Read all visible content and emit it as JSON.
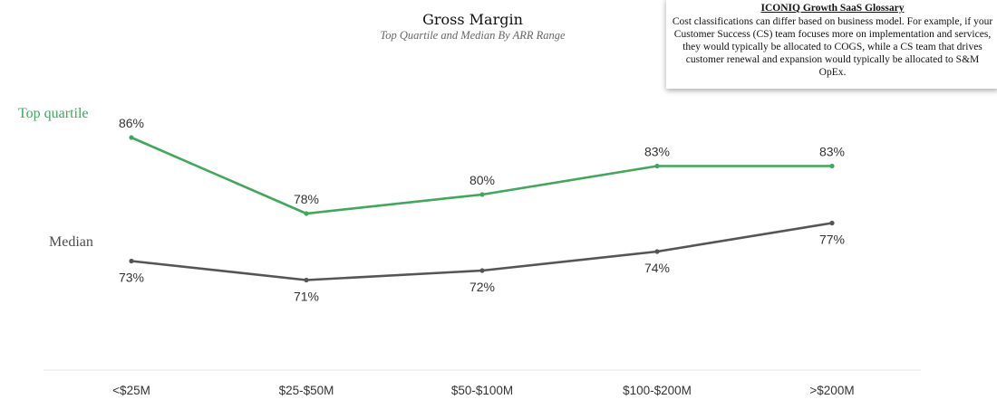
{
  "chart_data": {
    "type": "line",
    "title": "Gross Margin",
    "subtitle": "Top Quartile and Median By ARR Range",
    "categories": [
      "<$25M",
      "$25-$50M",
      "$50-$100M",
      "$100-$200M",
      ">$200M"
    ],
    "series": [
      {
        "name": "Top quartile",
        "color": "#3ea85b",
        "values": [
          86,
          78,
          80,
          83,
          83
        ],
        "labels": [
          "86%",
          "78%",
          "80%",
          "83%",
          "83%"
        ]
      },
      {
        "name": "Median",
        "color": "#555555",
        "values": [
          73,
          71,
          72,
          74,
          77
        ],
        "labels": [
          "73%",
          "71%",
          "72%",
          "74%",
          "77%"
        ]
      }
    ],
    "xlabel": "",
    "ylabel": "",
    "grid": false
  },
  "glossary": {
    "title": "ICONIQ Growth SaaS Glossary",
    "body": "Cost classifications can differ based on business model. For example, if your Customer Success (CS) team focuses more on implementation and services, they would typically be allocated to COGS, while a CS team that drives customer renewal and expansion would typically be allocated to S&M OpEx."
  }
}
